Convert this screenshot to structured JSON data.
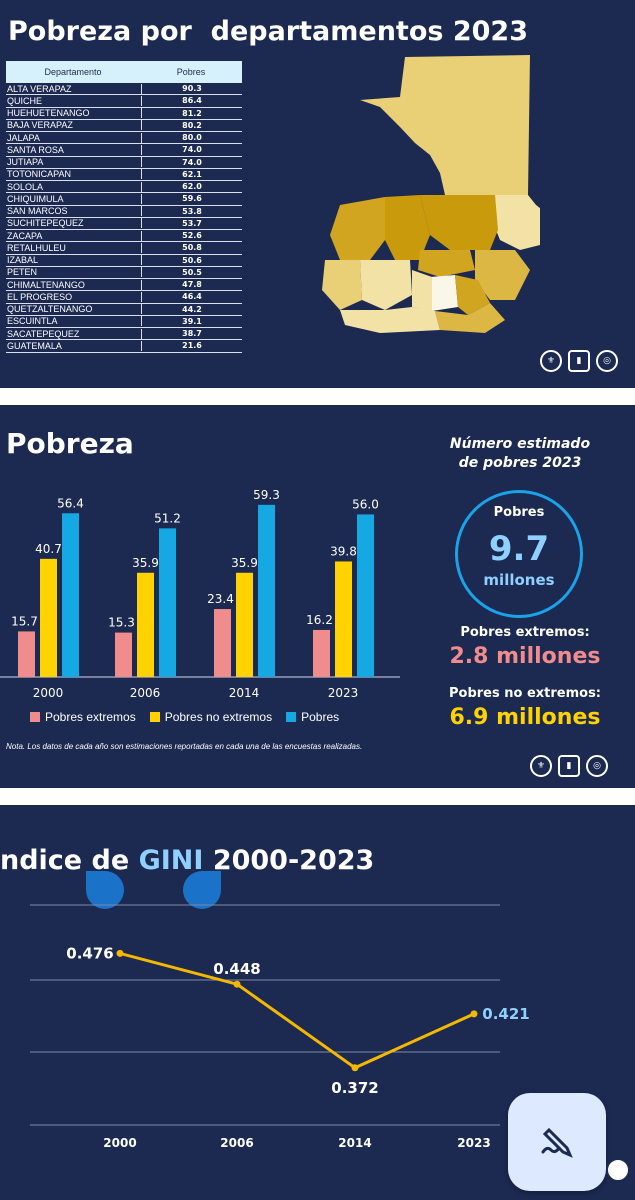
{
  "slide1": {
    "title": "Pobreza por  departamentos 2023",
    "table_headers": [
      "Departamento",
      "Pobres"
    ],
    "rows": [
      {
        "dept": "ALTA VERAPAZ",
        "val": "90.3"
      },
      {
        "dept": "QUICHE",
        "val": "86.4"
      },
      {
        "dept": "HUEHUETENANGO",
        "val": "81.2"
      },
      {
        "dept": "BAJA VERAPAZ",
        "val": "80.2"
      },
      {
        "dept": "JALAPA",
        "val": "80.0"
      },
      {
        "dept": "SANTA ROSA",
        "val": "74.0"
      },
      {
        "dept": "JUTIAPA",
        "val": "74.0"
      },
      {
        "dept": "TOTONICAPAN",
        "val": "62.1"
      },
      {
        "dept": "SOLOLA",
        "val": "62.0"
      },
      {
        "dept": "CHIQUIMULA",
        "val": "59.6"
      },
      {
        "dept": "SAN MARCOS",
        "val": "53.8"
      },
      {
        "dept": "SUCHITEPEQUEZ",
        "val": "53.7"
      },
      {
        "dept": "ZACAPA",
        "val": "52.6"
      },
      {
        "dept": "RETALHULEU",
        "val": "50.8"
      },
      {
        "dept": "IZABAL",
        "val": "50.6"
      },
      {
        "dept": "PETEN",
        "val": "50.5"
      },
      {
        "dept": "CHIMALTENANGO",
        "val": "47.8"
      },
      {
        "dept": "EL PROGRESO",
        "val": "46.4"
      },
      {
        "dept": "QUETZALTENANGO",
        "val": "44.2"
      },
      {
        "dept": "ESCUINTLA",
        "val": "39.1"
      },
      {
        "dept": "SACATEPEQUEZ",
        "val": "38.7"
      },
      {
        "dept": "GUATEMALA",
        "val": "21.6"
      }
    ],
    "map_colors": {
      "dark": "#c89a0c",
      "mid": "#dcb744",
      "light": "#e9cf75",
      "pale": "#f2e2a6",
      "white": "#fbf7e8"
    }
  },
  "slide2": {
    "title": "Pobreza",
    "circle_title_1": "Número estimado",
    "circle_title_2": "de pobres 2023",
    "circle_label": "Pobres",
    "circle_value": "9.7",
    "circle_unit": "millones",
    "extremos_label": "Pobres extremos:",
    "extremos_value": "2.8 millones",
    "noextremos_label": "Pobres no extremos:",
    "noextremos_value": "6.9 millones",
    "nota": "Nota. Los datos de cada año son estimaciones reportadas en cada una de las encuestas realizadas.",
    "colors": {
      "extremos": "#f08c8c",
      "noextremos": "#ffd200",
      "pobres": "#15a8e2"
    }
  },
  "slide3": {
    "title_prefix": "ndice de ",
    "title_highlight": "GINI",
    "title_suffix": " 2000-2023"
  },
  "chart_data": [
    {
      "type": "bar",
      "categories": [
        "2000",
        "2006",
        "2014",
        "2023"
      ],
      "series": [
        {
          "name": "Pobres extremos",
          "values": [
            15.7,
            15.3,
            23.4,
            16.2
          ],
          "labels": [
            "15.7",
            "15.3",
            "23.4",
            "16.2"
          ]
        },
        {
          "name": "Pobres no extremos",
          "values": [
            40.7,
            35.9,
            35.9,
            39.8
          ],
          "labels": [
            "40.7",
            "35.9",
            "35.9",
            "39.8"
          ]
        },
        {
          "name": "Pobres",
          "values": [
            56.4,
            51.2,
            59.3,
            56.0
          ],
          "labels": [
            "56.4",
            "51.2",
            "59.3",
            "56.0"
          ]
        }
      ],
      "ylim": [
        0,
        62
      ],
      "legend": "bottom"
    },
    {
      "type": "line",
      "x": [
        "2000",
        "2006",
        "2014",
        "2023"
      ],
      "values": [
        0.476,
        0.448,
        0.372,
        0.421
      ],
      "labels": [
        "0.476",
        "0.448",
        "0.372",
        "0.421"
      ],
      "ylim": [
        0.32,
        0.52
      ],
      "grid": true,
      "color": "#f5b800"
    }
  ]
}
